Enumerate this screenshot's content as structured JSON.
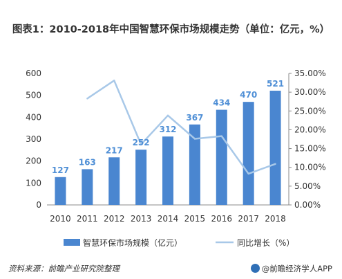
{
  "title": "图表1：2010-2018年中国智慧环保市场规模走势（单位：亿元，%）",
  "footer": {
    "source": "资料来源：前瞻产业研究院整理",
    "brand": "@前瞻经济学人APP"
  },
  "colors": {
    "bar": "#4a86d0",
    "line": "#a8c8e8",
    "label": "#4f8fd6",
    "axis": "#888888"
  },
  "chart_data": {
    "type": "bar",
    "categories": [
      "2010",
      "2011",
      "2012",
      "2013",
      "2014",
      "2015",
      "2016",
      "2017",
      "2018"
    ],
    "series": [
      {
        "name": "智慧环保市场规模（亿元）",
        "type": "bar",
        "axis": "left",
        "values": [
          127,
          163,
          217,
          252,
          312,
          367,
          434,
          470,
          521
        ]
      },
      {
        "name": "同比增长（%）",
        "type": "line",
        "axis": "right",
        "values": [
          null,
          28.3,
          33.1,
          16.1,
          23.8,
          17.6,
          18.3,
          8.3,
          10.9
        ]
      }
    ],
    "ylim": [
      0,
      600
    ],
    "yticks": [
      "0",
      "100",
      "200",
      "300",
      "400",
      "500",
      "600"
    ],
    "y2lim": [
      0,
      35
    ],
    "y2ticks": [
      "0.00%",
      "5.00%",
      "10.00%",
      "15.00%",
      "20.00%",
      "25.00%",
      "30.00%",
      "35.00%"
    ],
    "data_labels": [
      "127",
      "163",
      "217",
      "252",
      "312",
      "367",
      "434",
      "470",
      "521"
    ],
    "legend_position": "bottom"
  }
}
